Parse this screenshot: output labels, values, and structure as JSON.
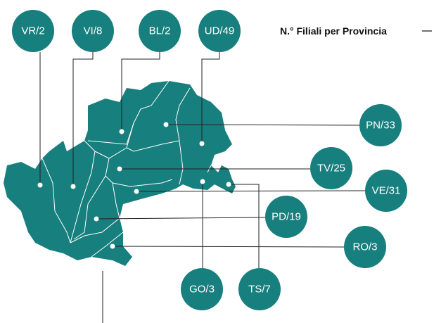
{
  "title": "N.° Filiali per Provincia",
  "provinces": [
    {
      "label": "VR/2"
    },
    {
      "label": "VI/8"
    },
    {
      "label": "BL/2"
    },
    {
      "label": "UD/49"
    },
    {
      "label": "PN/33"
    },
    {
      "label": "TV/25"
    },
    {
      "label": "VE/31"
    },
    {
      "label": "PD/19"
    },
    {
      "label": "RO/3"
    },
    {
      "label": "GO/3"
    },
    {
      "label": "TS/7"
    }
  ]
}
